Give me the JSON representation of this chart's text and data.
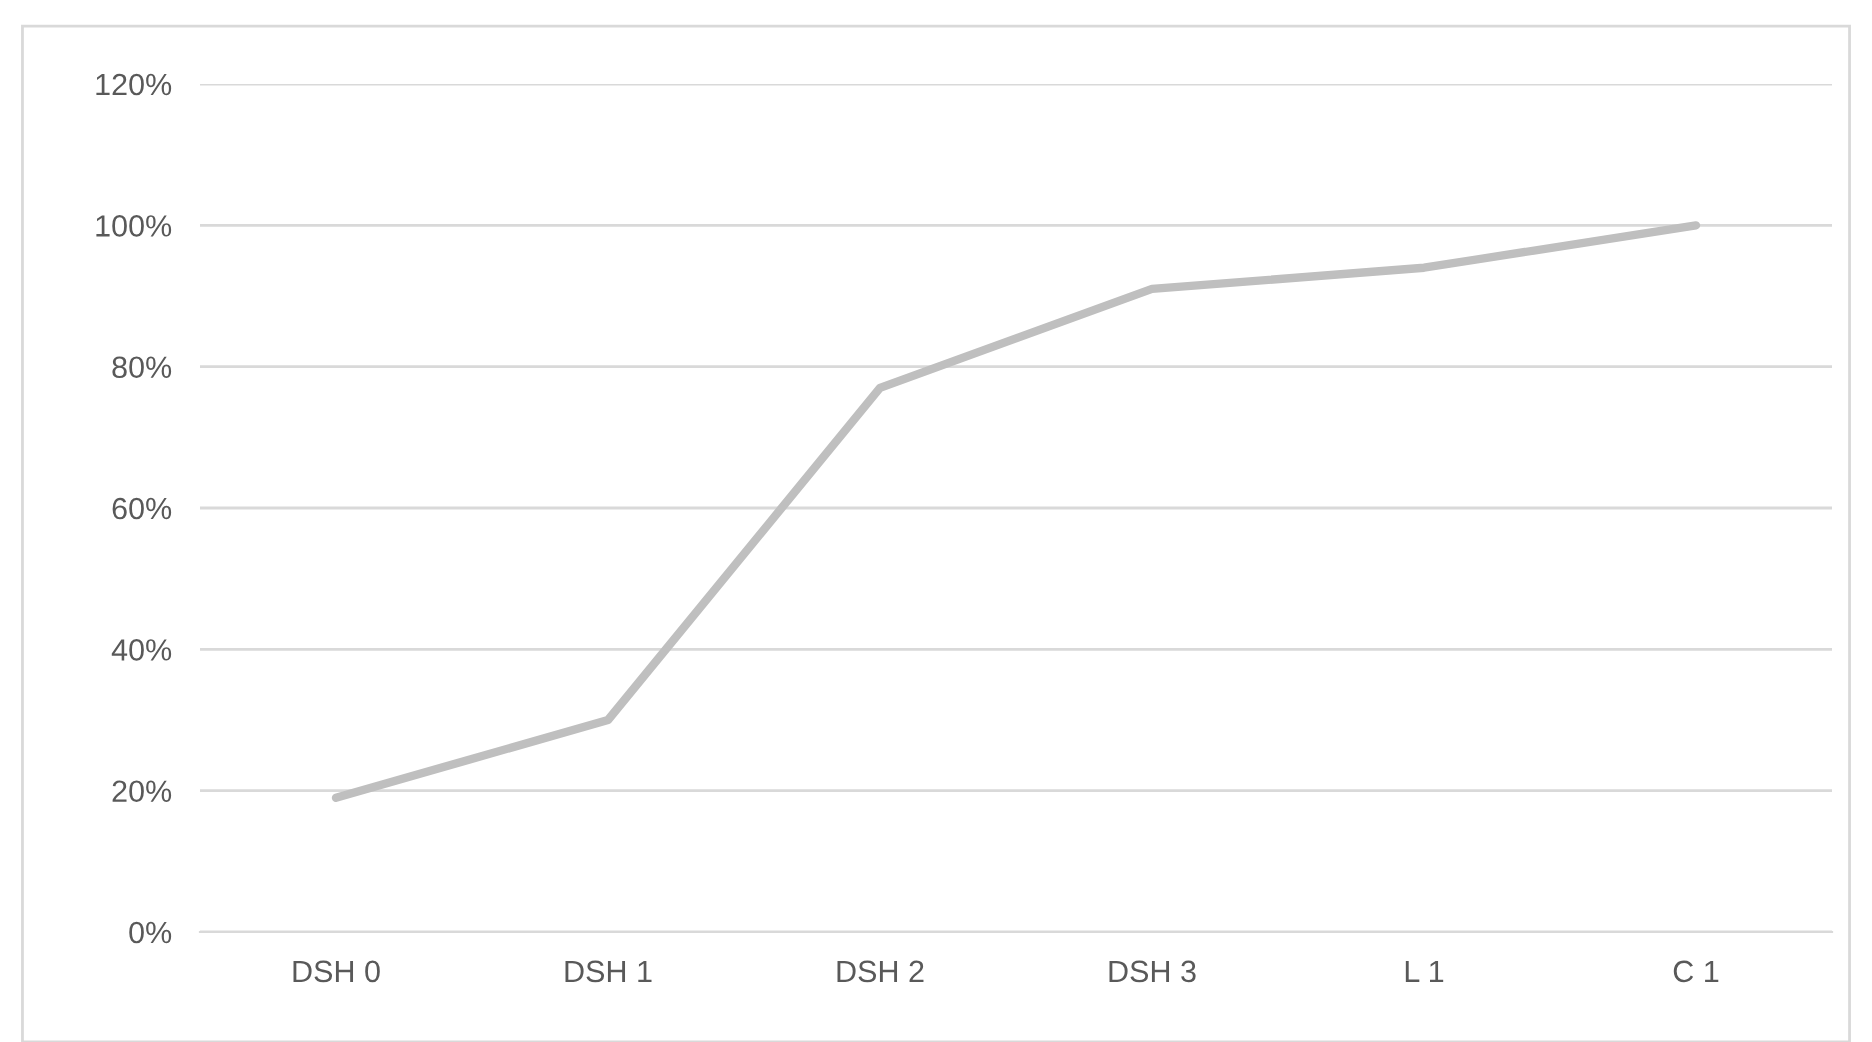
{
  "chart_data": {
    "type": "line",
    "categories": [
      "DSH 0",
      "DSH 1",
      "DSH 2",
      "DSH 3",
      "L 1",
      "C 1"
    ],
    "series": [
      {
        "color": "#bfbfbf",
        "values": [
          19,
          30,
          77,
          91,
          94,
          100
        ]
      }
    ],
    "ylim": [
      0,
      120
    ],
    "yticks": [
      {
        "value": 0,
        "label": "0%"
      },
      {
        "value": 20,
        "label": "20%"
      },
      {
        "value": 40,
        "label": "40%"
      },
      {
        "value": 60,
        "label": "60%"
      },
      {
        "value": 80,
        "label": "80%"
      },
      {
        "value": 100,
        "label": "100%"
      },
      {
        "value": 120,
        "label": "120%"
      }
    ],
    "grid": "y",
    "legend": false,
    "marker": "none",
    "line_style": "solid"
  }
}
